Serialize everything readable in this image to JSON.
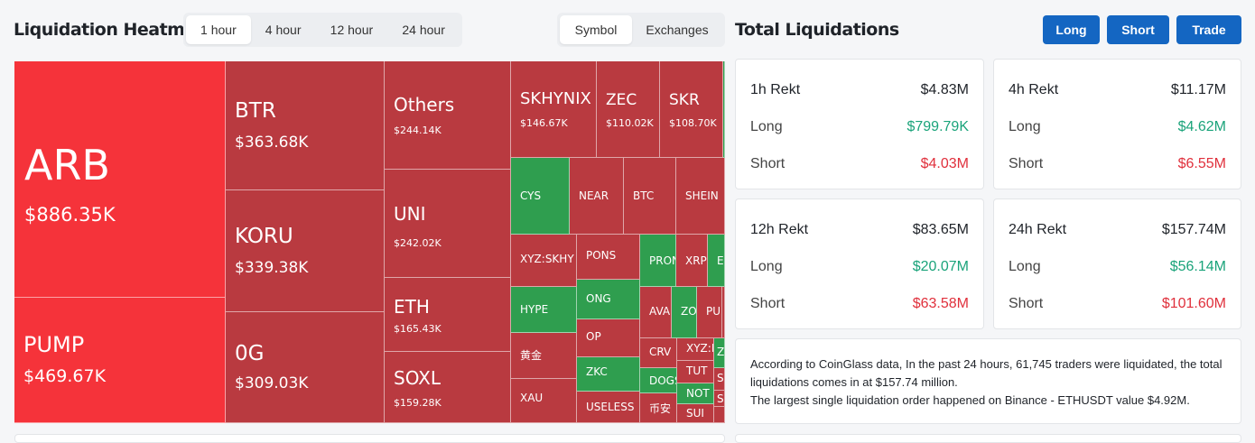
{
  "heatmap": {
    "title": "Liquidation Heatmap",
    "time_tabs": [
      "1 hour",
      "4 hour",
      "12 hour",
      "24 hour"
    ],
    "active_time_tab": "1 hour",
    "view_tabs": [
      "Symbol",
      "Exchanges"
    ],
    "active_view_tab": "Symbol",
    "cells": [
      {
        "symbol": "ARB",
        "value": "$886.35K",
        "color": "#f5333a"
      },
      {
        "symbol": "PUMP",
        "value": "$469.67K",
        "color": "#f5333a"
      },
      {
        "symbol": "BTR",
        "value": "$363.68K",
        "color": "#b93a40"
      },
      {
        "symbol": "KORU",
        "value": "$339.38K",
        "color": "#b93a40"
      },
      {
        "symbol": "0G",
        "value": "$309.03K",
        "color": "#b93a40"
      },
      {
        "symbol": "Others",
        "value": "$244.14K",
        "color": "#b93a40"
      },
      {
        "symbol": "UNI",
        "value": "$242.02K",
        "color": "#b93a40"
      },
      {
        "symbol": "ETH",
        "value": "$165.43K",
        "color": "#b93a40"
      },
      {
        "symbol": "SOXL",
        "value": "$159.28K",
        "color": "#b93a40"
      },
      {
        "symbol": "SKHYNIX",
        "value": "$146.67K",
        "color": "#b93a40"
      },
      {
        "symbol": "ZEC",
        "value": "$110.02K",
        "color": "#b93a40"
      },
      {
        "symbol": "SKR",
        "value": "$108.70K",
        "color": "#b93a40"
      },
      {
        "symbol": "",
        "value": "",
        "color": "#2f9e4f"
      },
      {
        "symbol": "CYS",
        "value": "",
        "color": "#2f9e4f"
      },
      {
        "symbol": "NEAR",
        "value": "",
        "color": "#b93a40"
      },
      {
        "symbol": "BTC",
        "value": "",
        "color": "#b93a40"
      },
      {
        "symbol": "SHEIN",
        "value": "",
        "color": "#b93a40"
      },
      {
        "symbol": "XYZ:SKHY",
        "value": "",
        "color": "#b93a40"
      },
      {
        "symbol": "PONS",
        "value": "",
        "color": "#b93a40"
      },
      {
        "symbol": "PRON",
        "value": "",
        "color": "#2f9e4f"
      },
      {
        "symbol": "XRP",
        "value": "",
        "color": "#b93a40"
      },
      {
        "symbol": "EI",
        "value": "",
        "color": "#2f9e4f"
      },
      {
        "symbol": "HYPE",
        "value": "",
        "color": "#2f9e4f"
      },
      {
        "symbol": "ONG",
        "value": "",
        "color": "#2f9e4f"
      },
      {
        "symbol": "AVA",
        "value": "",
        "color": "#b93a40"
      },
      {
        "symbol": "ZO",
        "value": "",
        "color": "#2f9e4f"
      },
      {
        "symbol": "PU",
        "value": "",
        "color": "#b93a40"
      },
      {
        "symbol": "",
        "value": "",
        "color": "#b93a40"
      },
      {
        "symbol": "OP",
        "value": "",
        "color": "#b93a40"
      },
      {
        "symbol": "黄金",
        "value": "",
        "color": "#b93a40"
      },
      {
        "symbol": "CRV",
        "value": "",
        "color": "#b93a40"
      },
      {
        "symbol": "XYZ:N",
        "value": "",
        "color": "#b93a40"
      },
      {
        "symbol": "Z",
        "value": "",
        "color": "#2f9e4f"
      },
      {
        "symbol": "ZKC",
        "value": "",
        "color": "#2f9e4f"
      },
      {
        "symbol": "TUT",
        "value": "",
        "color": "#b93a40"
      },
      {
        "symbol": "DOGS",
        "value": "",
        "color": "#2f9e4f"
      },
      {
        "symbol": "S",
        "value": "",
        "color": "#b93a40"
      },
      {
        "symbol": "XAU",
        "value": "",
        "color": "#b93a40"
      },
      {
        "symbol": "USELESS",
        "value": "",
        "color": "#b93a40"
      },
      {
        "symbol": "NOT",
        "value": "",
        "color": "#2f9e4f"
      },
      {
        "symbol": "S",
        "value": "",
        "color": "#b93a40"
      },
      {
        "symbol": "币安",
        "value": "",
        "color": "#b93a40"
      },
      {
        "symbol": "SUI",
        "value": "",
        "color": "#b93a40"
      },
      {
        "symbol": "",
        "value": "",
        "color": "#b93a40"
      }
    ]
  },
  "totals": {
    "title": "Total Liquidations",
    "buttons": [
      "Long",
      "Short",
      "Trade"
    ],
    "cards": [
      {
        "label": "1h Rekt",
        "total": "$4.83M",
        "long_label": "Long",
        "long": "$799.79K",
        "short_label": "Short",
        "short": "$4.03M"
      },
      {
        "label": "4h Rekt",
        "total": "$11.17M",
        "long_label": "Long",
        "long": "$4.62M",
        "short_label": "Short",
        "short": "$6.55M"
      },
      {
        "label": "12h Rekt",
        "total": "$83.65M",
        "long_label": "Long",
        "long": "$20.07M",
        "short_label": "Short",
        "short": "$63.58M"
      },
      {
        "label": "24h Rekt",
        "total": "$157.74M",
        "long_label": "Long",
        "long": "$56.14M",
        "short_label": "Short",
        "short": "$101.60M"
      }
    ],
    "summary_line1": "According to CoinGlass data, In the past 24 hours, 61,745 traders were liquidated, the total liquidations comes in at $157.74 million.",
    "summary_line2": "The largest single liquidation order happened on Binance - ETHUSDT value $4.92M."
  }
}
